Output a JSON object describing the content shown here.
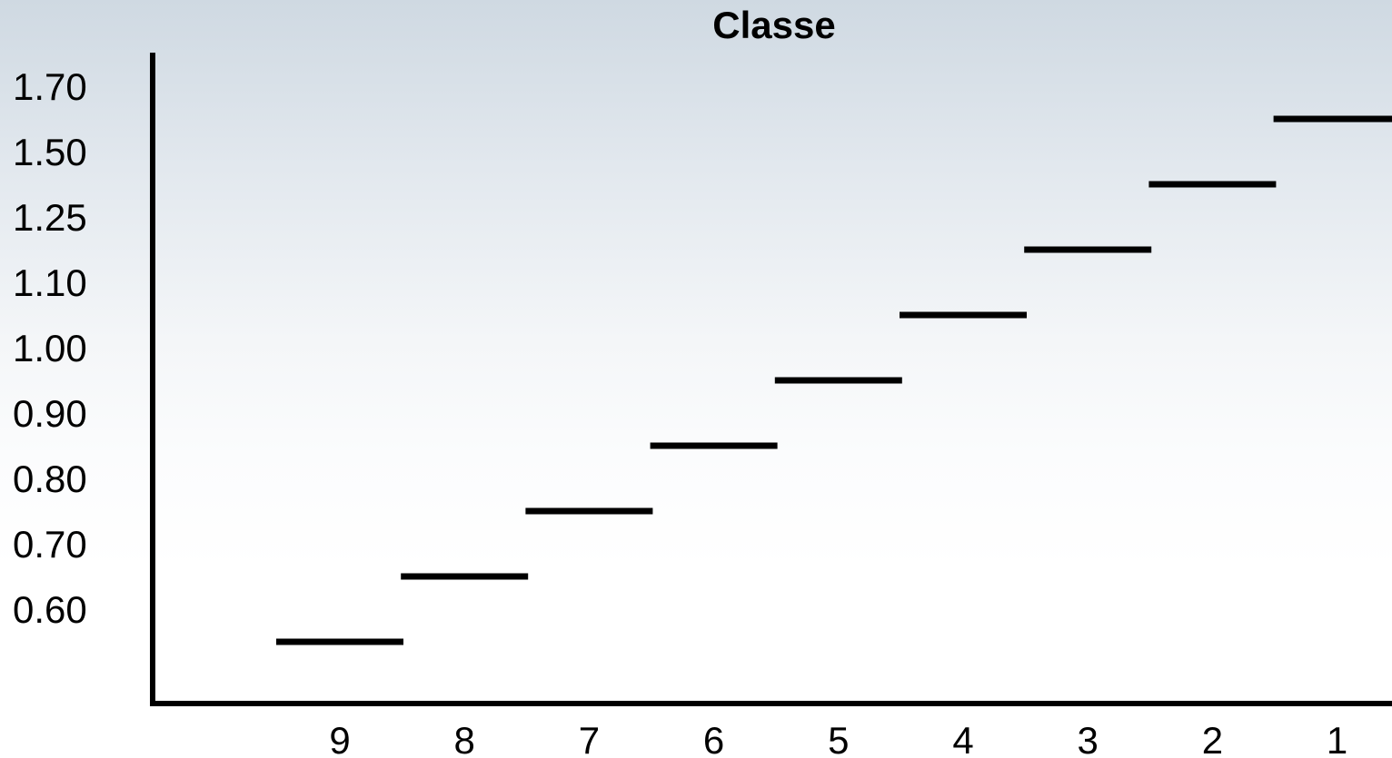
{
  "chart_data": {
    "type": "step",
    "title": "Classe",
    "xlabel": "",
    "ylabel": "",
    "categories": [
      "9",
      "8",
      "7",
      "6",
      "5",
      "4",
      "3",
      "2",
      "1"
    ],
    "y_tick_labels": [
      "0.60",
      "0.70",
      "0.80",
      "0.90",
      "1.00",
      "1.10",
      "1.25",
      "1.50",
      "1.70"
    ],
    "series": [
      {
        "values_by_band": [
          {
            "category": "9",
            "band": "below 0.60"
          },
          {
            "category": "8",
            "band": "0.60–0.70"
          },
          {
            "category": "7",
            "band": "0.70–0.80"
          },
          {
            "category": "6",
            "band": "0.80–0.90"
          },
          {
            "category": "5",
            "band": "0.90–1.00"
          },
          {
            "category": "4",
            "band": "1.00–1.10"
          },
          {
            "category": "3",
            "band": "1.10–1.25"
          },
          {
            "category": "2",
            "band": "1.25–1.50"
          },
          {
            "category": "1",
            "band": "1.50–1.70"
          }
        ],
        "level_index": [
          -0.5,
          0.5,
          1.5,
          2.5,
          3.5,
          4.5,
          5.5,
          6.5,
          7.5
        ]
      }
    ],
    "grid": false,
    "legend": "none",
    "color": "#000000"
  }
}
